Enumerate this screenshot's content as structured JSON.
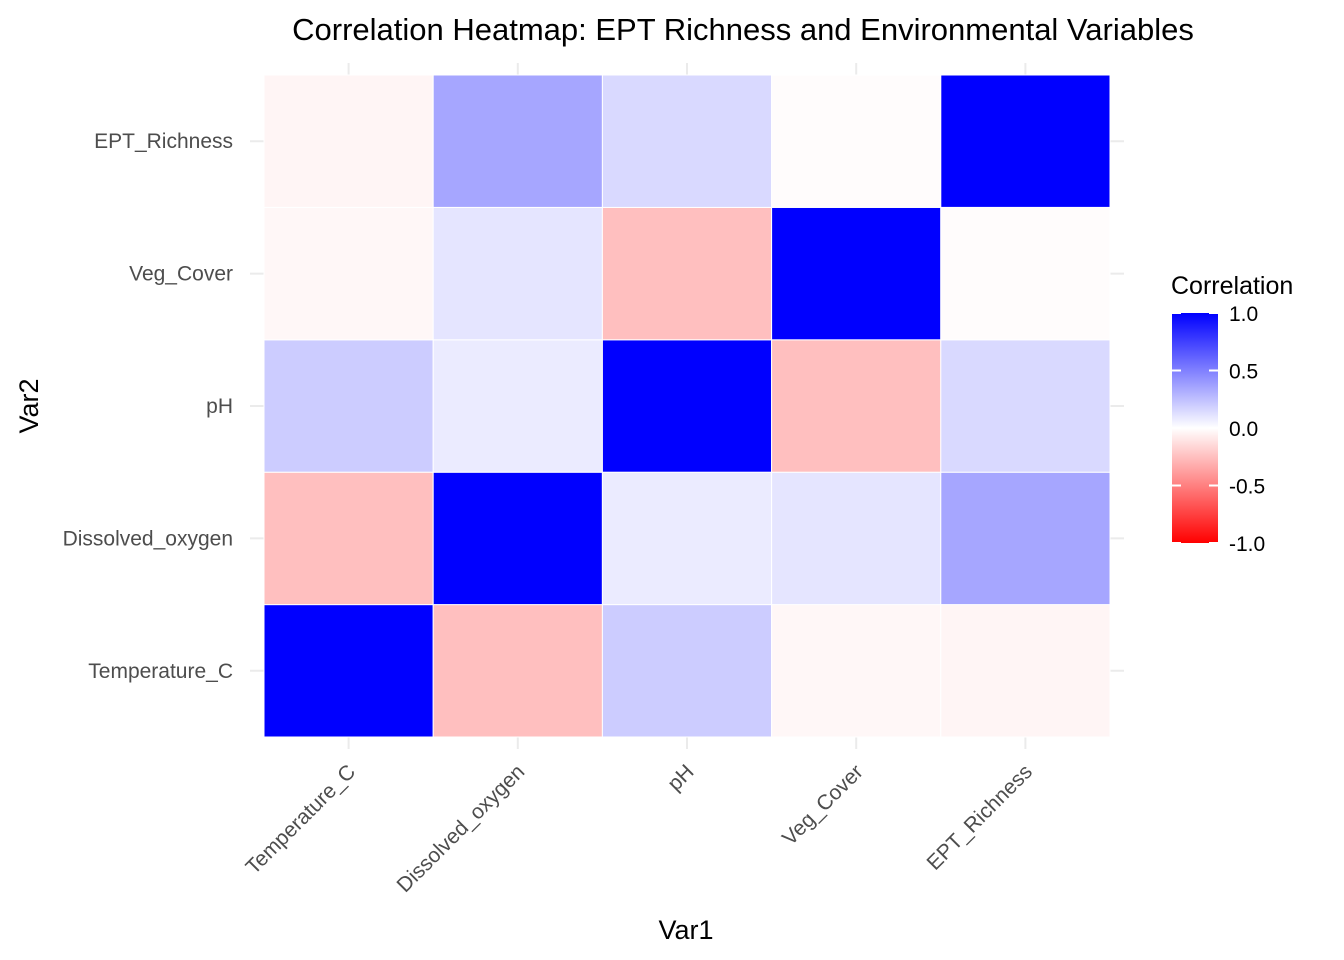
{
  "chart_data": {
    "type": "heatmap",
    "title": "Correlation Heatmap: EPT Richness and Environmental Variables",
    "xlabel": "Var1",
    "ylabel": "Var2",
    "x_categories": [
      "Temperature_C",
      "Dissolved_oxygen",
      "pH",
      "Veg_Cover",
      "EPT_Richness"
    ],
    "y_categories": [
      "Temperature_C",
      "Dissolved_oxygen",
      "pH",
      "Veg_Cover",
      "EPT_Richness"
    ],
    "values": [
      [
        1.0,
        -0.25,
        0.2,
        -0.03,
        -0.04
      ],
      [
        -0.25,
        1.0,
        0.08,
        0.1,
        0.35
      ],
      [
        0.2,
        0.08,
        1.0,
        -0.25,
        0.15
      ],
      [
        -0.03,
        0.1,
        -0.25,
        1.0,
        -0.01
      ],
      [
        -0.04,
        0.35,
        0.15,
        -0.01,
        1.0
      ]
    ],
    "legend": {
      "title": "Correlation",
      "ticks": [
        1.0,
        0.5,
        0.0,
        -0.5,
        -1.0
      ],
      "tick_labels": [
        "1.0",
        "0.5",
        "0.0",
        "-0.5",
        "-1.0"
      ],
      "range": [
        -1,
        1
      ],
      "placement": "right"
    },
    "colors": {
      "low": "#ff0000",
      "mid": "#ffffff",
      "high": "#0000ff"
    },
    "grid": true
  }
}
